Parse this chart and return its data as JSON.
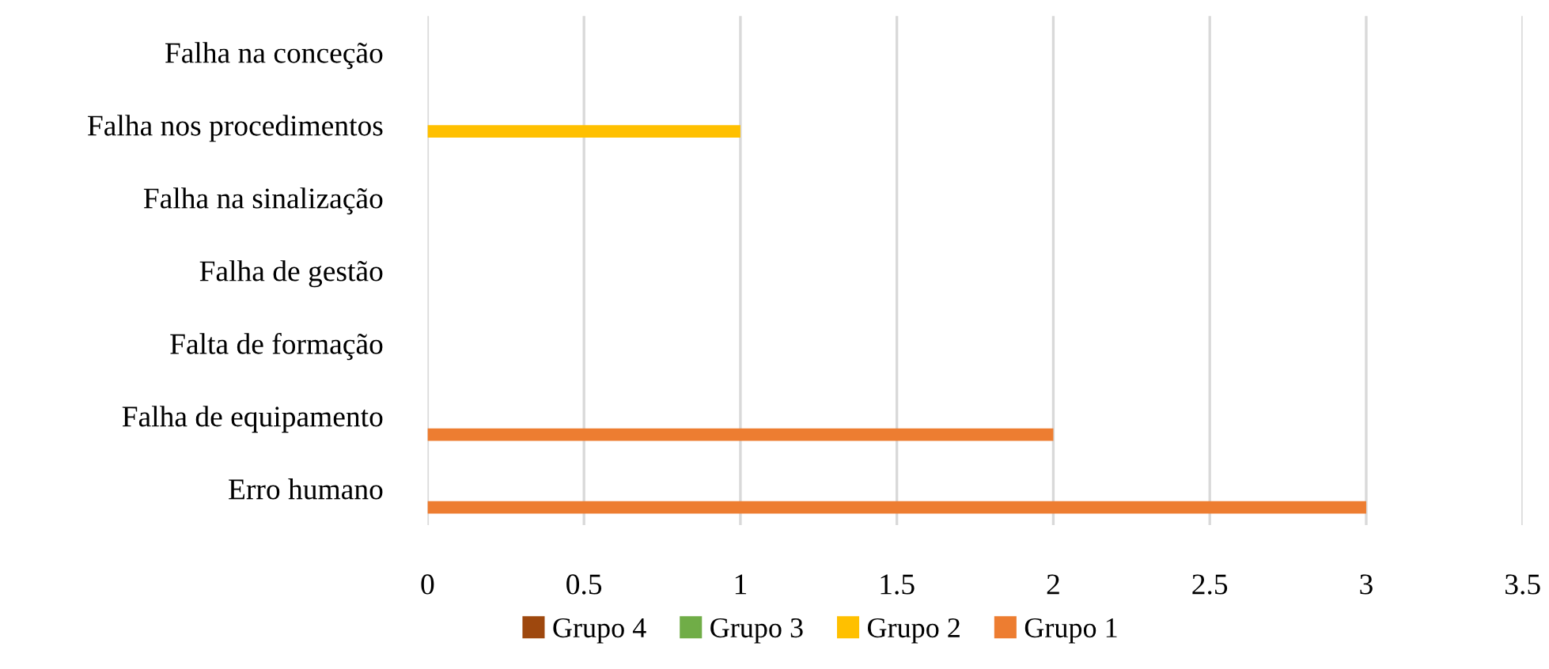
{
  "chart_data": {
    "type": "bar",
    "orientation": "horizontal",
    "categories": [
      "Falha na conceção",
      "Falha nos procedimentos",
      "Falha na sinalização",
      "Falha de gestão",
      "Falta de formação",
      "Falha de equipamento",
      "Erro humano"
    ],
    "series": [
      {
        "name": "Grupo 4",
        "color": "#9e480e",
        "values": [
          0,
          0,
          0,
          0,
          0,
          0,
          0
        ]
      },
      {
        "name": "Grupo 3",
        "color": "#70ad47",
        "values": [
          0,
          0,
          0,
          0,
          0,
          0,
          0
        ]
      },
      {
        "name": "Grupo 2",
        "color": "#ffc000",
        "values": [
          0,
          1,
          0,
          0,
          0,
          0,
          0
        ]
      },
      {
        "name": "Grupo 1",
        "color": "#ed7d31",
        "values": [
          0,
          0,
          0,
          0,
          0,
          2,
          3
        ]
      }
    ],
    "xlim": [
      0,
      3.5
    ],
    "xticks": [
      0,
      0.5,
      1,
      1.5,
      2,
      2.5,
      3,
      3.5
    ],
    "grid": "x",
    "legend": "bottom"
  }
}
